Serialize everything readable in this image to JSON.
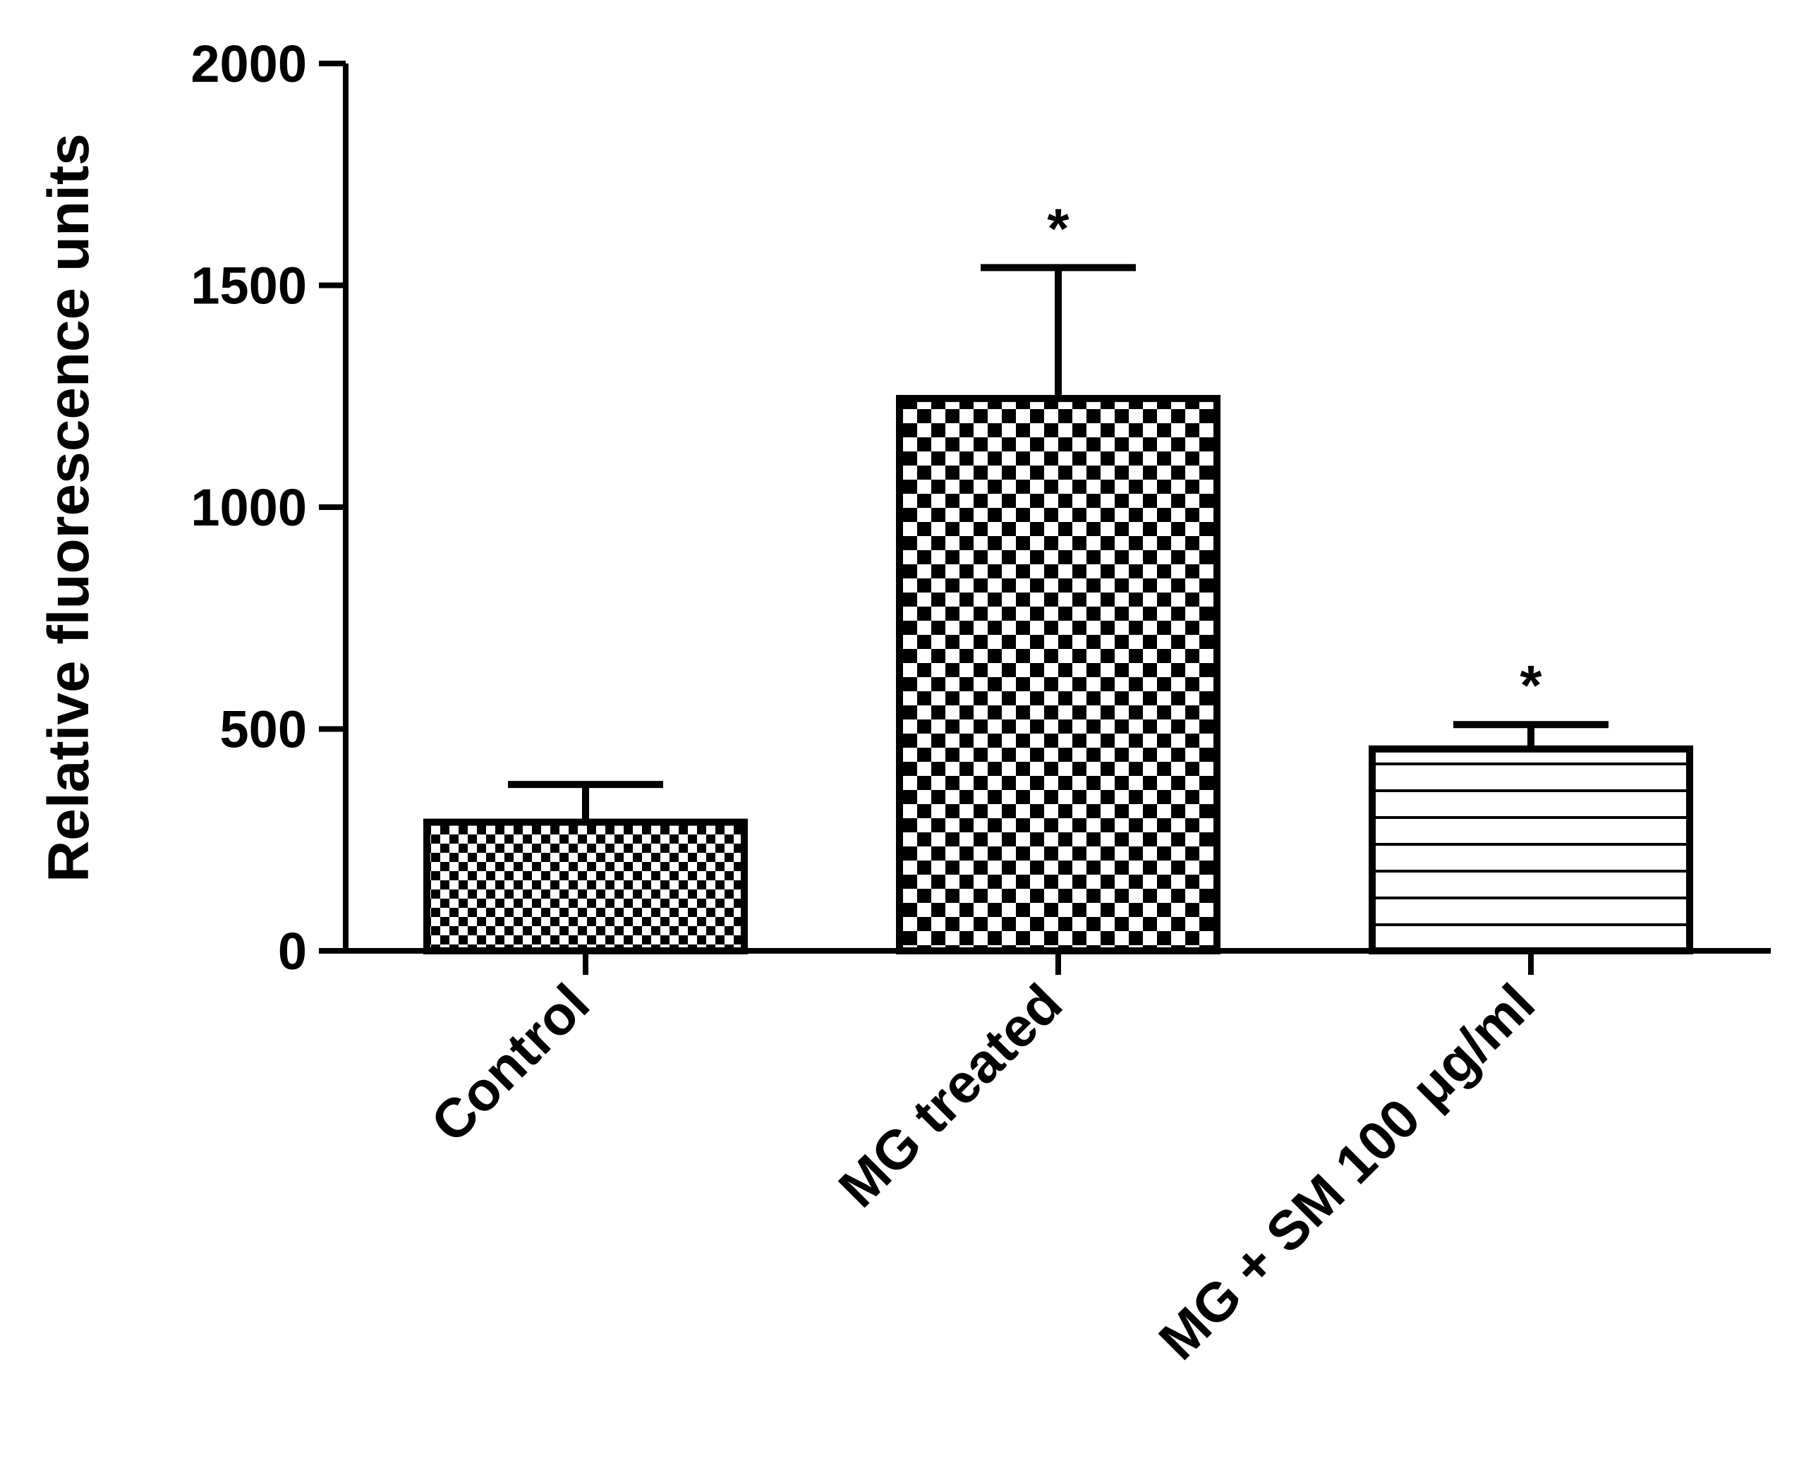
{
  "chart_data": {
    "type": "bar",
    "title": "",
    "xlabel": "",
    "ylabel": "Relative fluorescence units",
    "ylim": [
      0,
      2000
    ],
    "yticks": [
      0,
      500,
      1000,
      1500,
      2000
    ],
    "grid": false,
    "categories": [
      "Control",
      "MG treated",
      "MG + SM 100 μg/ml"
    ],
    "values": [
      290,
      1245,
      455
    ],
    "errors": [
      85,
      295,
      55
    ],
    "significance": [
      "",
      "*",
      "*"
    ],
    "patterns": [
      "fine-checker",
      "coarse-checker",
      "horizontal-lines"
    ],
    "colors": {
      "bar_stroke": "#000000",
      "bar_fill": "#ffffff",
      "axis": "#000000"
    }
  }
}
